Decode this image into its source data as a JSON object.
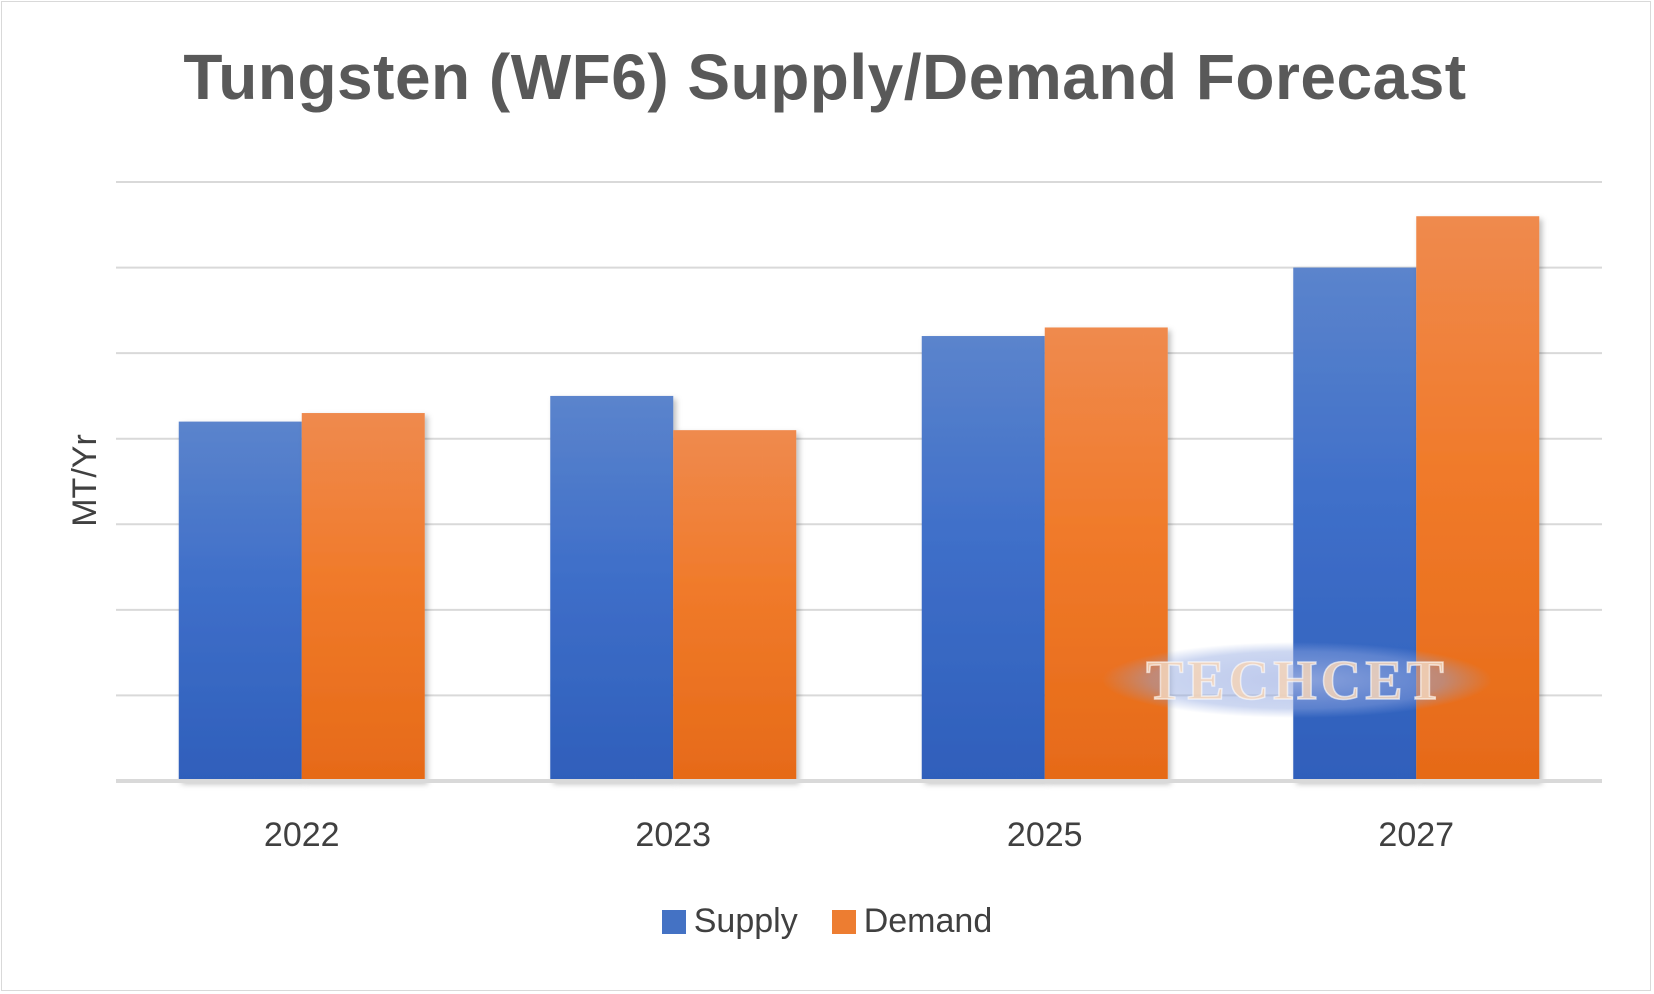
{
  "chart_data": {
    "type": "bar",
    "title": "Tungsten (WF6) Supply/Demand Forecast",
    "xlabel": "",
    "ylabel": "MT/Yr",
    "categories": [
      "2022",
      "2023",
      "2025",
      "2027"
    ],
    "series": [
      {
        "name": "Supply",
        "color": "#4472c4",
        "values": [
          4.2,
          4.5,
          5.2,
          6.0
        ]
      },
      {
        "name": "Demand",
        "color": "#ed7d31",
        "values": [
          4.3,
          4.1,
          5.3,
          6.6
        ]
      }
    ],
    "ylim": [
      0,
      7
    ],
    "y_tick_labels_shown": false,
    "grid": true,
    "legend_position": "bottom"
  },
  "watermark": "TECHCET"
}
